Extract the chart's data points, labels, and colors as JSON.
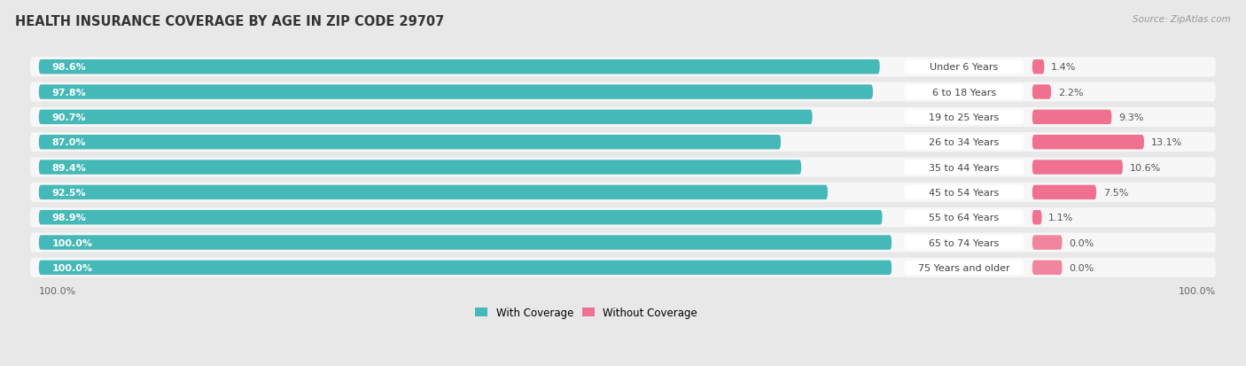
{
  "title": "HEALTH INSURANCE COVERAGE BY AGE IN ZIP CODE 29707",
  "source": "Source: ZipAtlas.com",
  "categories": [
    "Under 6 Years",
    "6 to 18 Years",
    "19 to 25 Years",
    "26 to 34 Years",
    "35 to 44 Years",
    "45 to 54 Years",
    "55 to 64 Years",
    "65 to 74 Years",
    "75 Years and older"
  ],
  "with_coverage": [
    98.6,
    97.8,
    90.7,
    87.0,
    89.4,
    92.5,
    98.9,
    100.0,
    100.0
  ],
  "without_coverage": [
    1.4,
    2.2,
    9.3,
    13.1,
    10.6,
    7.5,
    1.1,
    0.0,
    0.0
  ],
  "coverage_color": "#45B8B8",
  "no_coverage_color": "#F07090",
  "bg_color": "#e8e8e8",
  "row_bg_color": "#f7f7f7",
  "axis_label_left": "100.0%",
  "axis_label_right": "100.0%",
  "legend_with": "With Coverage",
  "legend_without": "Without Coverage",
  "title_fontsize": 10.5,
  "source_fontsize": 7.5,
  "bar_label_fontsize": 8,
  "cat_label_fontsize": 8,
  "pct_label_fontsize": 8
}
